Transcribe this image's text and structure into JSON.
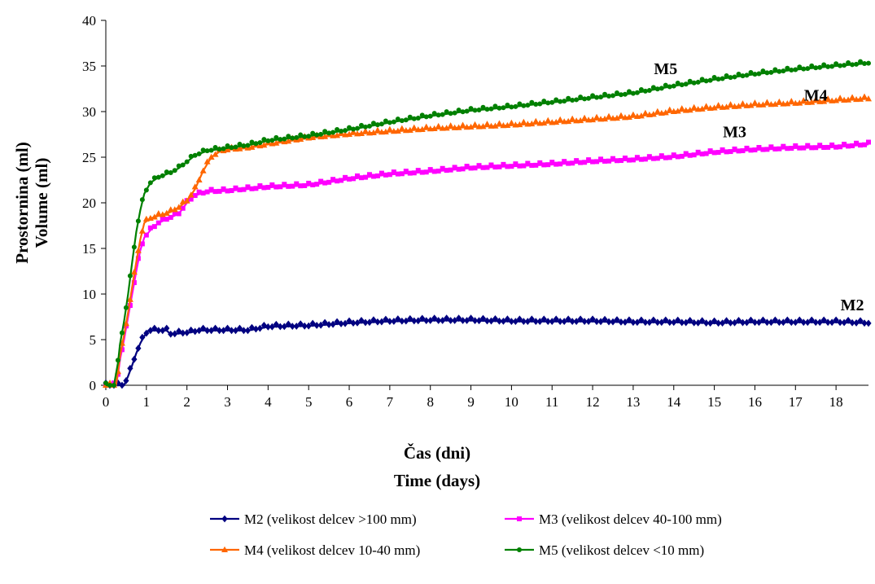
{
  "chart_data": {
    "type": "line",
    "xlabel": [
      "Čas (dni)",
      "Time (days)"
    ],
    "ylabel": [
      "Prostornina (ml)",
      "Volume (ml)"
    ],
    "xlim": [
      0,
      18.8
    ],
    "ylim": [
      0,
      40
    ],
    "xticks": [
      "0",
      "1",
      "2",
      "3",
      "4",
      "5",
      "6",
      "7",
      "8",
      "9",
      "10",
      "11",
      "12",
      "13",
      "14",
      "15",
      "16",
      "17",
      "18"
    ],
    "yticks": [
      "0",
      "5",
      "10",
      "15",
      "20",
      "25",
      "30",
      "35",
      "40"
    ],
    "grid": false,
    "legend_position": "bottom",
    "series": [
      {
        "name": "M2 (velikost delcev >100 mm)",
        "label": "M2",
        "color": "#000080",
        "marker": "diamond",
        "points": [
          [
            0,
            0
          ],
          [
            0.3,
            0
          ],
          [
            0.45,
            0
          ],
          [
            0.55,
            1
          ],
          [
            0.65,
            2.2
          ],
          [
            0.75,
            3.5
          ],
          [
            0.85,
            4.6
          ],
          [
            0.95,
            5.4
          ],
          [
            1.05,
            6
          ],
          [
            1.5,
            6
          ],
          [
            1.6,
            5.6
          ],
          [
            2.1,
            5.8
          ],
          [
            2.3,
            6
          ],
          [
            3,
            6
          ],
          [
            3.5,
            6
          ],
          [
            4,
            6.4
          ],
          [
            5,
            6.5
          ],
          [
            6,
            6.8
          ],
          [
            7,
            7
          ],
          [
            8,
            7.1
          ],
          [
            9,
            7.1
          ],
          [
            10,
            7
          ],
          [
            11,
            7
          ],
          [
            12,
            7
          ],
          [
            13,
            6.9
          ],
          [
            14,
            6.9
          ],
          [
            15,
            6.8
          ],
          [
            16,
            6.9
          ],
          [
            17,
            6.9
          ],
          [
            18,
            6.9
          ],
          [
            18.8,
            6.8
          ]
        ]
      },
      {
        "name": "M3 (velikost delcev 40-100 mm)",
        "label": "M3",
        "color": "#FF00FF",
        "marker": "square",
        "points": [
          [
            0,
            0
          ],
          [
            0.25,
            0
          ],
          [
            0.3,
            1.2
          ],
          [
            0.35,
            2.8
          ],
          [
            0.45,
            5
          ],
          [
            0.55,
            7.5
          ],
          [
            0.65,
            10
          ],
          [
            0.75,
            12.5
          ],
          [
            0.85,
            14.8
          ],
          [
            0.95,
            16.2
          ],
          [
            1.1,
            17
          ],
          [
            1.3,
            17.8
          ],
          [
            1.5,
            18.2
          ],
          [
            1.8,
            18.8
          ],
          [
            2,
            20
          ],
          [
            2.2,
            20.8
          ],
          [
            2.5,
            21.2
          ],
          [
            3,
            21.3
          ],
          [
            3.5,
            21.5
          ],
          [
            4,
            21.7
          ],
          [
            5,
            21.9
          ],
          [
            6,
            22.6
          ],
          [
            7,
            23.1
          ],
          [
            8,
            23.4
          ],
          [
            9,
            23.8
          ],
          [
            10,
            24
          ],
          [
            11,
            24.2
          ],
          [
            12,
            24.5
          ],
          [
            13,
            24.7
          ],
          [
            14,
            25
          ],
          [
            15,
            25.5
          ],
          [
            16,
            25.8
          ],
          [
            17,
            26
          ],
          [
            18,
            26.1
          ],
          [
            18.8,
            26.4
          ]
        ]
      },
      {
        "name": "M4 (velikost delcev 10-40 mm)",
        "label": "M4",
        "color": "#FF6600",
        "marker": "triangle",
        "points": [
          [
            0,
            0
          ],
          [
            0.25,
            0
          ],
          [
            0.3,
            1.5
          ],
          [
            0.35,
            3.2
          ],
          [
            0.45,
            5.5
          ],
          [
            0.55,
            8
          ],
          [
            0.65,
            10.8
          ],
          [
            0.75,
            13.5
          ],
          [
            0.85,
            16
          ],
          [
            0.95,
            17.8
          ],
          [
            1.1,
            18.3
          ],
          [
            1.4,
            18.7
          ],
          [
            1.6,
            19
          ],
          [
            1.8,
            19.5
          ],
          [
            2,
            20.2
          ],
          [
            2.2,
            21.5
          ],
          [
            2.4,
            23.5
          ],
          [
            2.6,
            25
          ],
          [
            2.8,
            25.6
          ],
          [
            3,
            25.8
          ],
          [
            3.5,
            26
          ],
          [
            4,
            26.4
          ],
          [
            5,
            27.1
          ],
          [
            6,
            27.5
          ],
          [
            7,
            27.8
          ],
          [
            8,
            28.1
          ],
          [
            9,
            28.3
          ],
          [
            10,
            28.5
          ],
          [
            11,
            28.8
          ],
          [
            12,
            29.1
          ],
          [
            13,
            29.4
          ],
          [
            14,
            30
          ],
          [
            15,
            30.4
          ],
          [
            16,
            30.7
          ],
          [
            17,
            30.9
          ],
          [
            18,
            31.2
          ],
          [
            18.8,
            31.4
          ]
        ]
      },
      {
        "name": "M5 (velikost delcev <10 mm)",
        "label": "M5",
        "color": "#008000",
        "marker": "circle",
        "points": [
          [
            0,
            0
          ],
          [
            0.2,
            0
          ],
          [
            0.3,
            2.5
          ],
          [
            0.35,
            4.5
          ],
          [
            0.45,
            7
          ],
          [
            0.55,
            10
          ],
          [
            0.65,
            13.5
          ],
          [
            0.75,
            16.8
          ],
          [
            0.85,
            19.2
          ],
          [
            0.95,
            21
          ],
          [
            1.1,
            22.2
          ],
          [
            1.3,
            22.8
          ],
          [
            1.6,
            23.3
          ],
          [
            1.8,
            23.8
          ],
          [
            2,
            24.5
          ],
          [
            2.2,
            25.2
          ],
          [
            2.5,
            25.7
          ],
          [
            3,
            26
          ],
          [
            3.5,
            26.3
          ],
          [
            4,
            26.8
          ],
          [
            5,
            27.3
          ],
          [
            6,
            28
          ],
          [
            7,
            28.8
          ],
          [
            8,
            29.5
          ],
          [
            9,
            30.1
          ],
          [
            10,
            30.5
          ],
          [
            11,
            31
          ],
          [
            12,
            31.5
          ],
          [
            13,
            32
          ],
          [
            14,
            32.8
          ],
          [
            15,
            33.5
          ],
          [
            16,
            34.1
          ],
          [
            17,
            34.6
          ],
          [
            18,
            35
          ],
          [
            18.8,
            35.3
          ]
        ]
      }
    ],
    "label_anchors": {
      "M2": [
        18.4,
        8.2
      ],
      "M3": [
        15.5,
        27.2
      ],
      "M4": [
        17.5,
        31.2
      ],
      "M5": [
        13.8,
        34.1
      ]
    }
  }
}
